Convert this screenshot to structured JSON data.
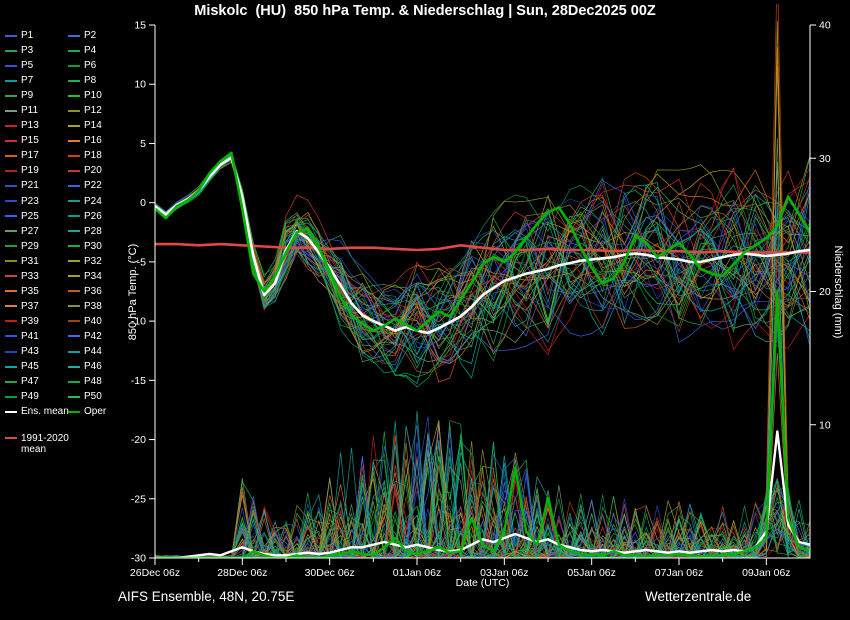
{
  "header": {
    "title": "Miskolc  (HU)  850 hPa Temp. & Niederschlag | Sun, 28Dec2025 00Z"
  },
  "footer": {
    "left": "AIFS Ensemble, 48N, 20.75E",
    "right": "Wetterzentrale.de"
  },
  "legend": {
    "members": [
      {
        "label": "P1",
        "color": "#3a5fd0"
      },
      {
        "label": "P2",
        "color": "#4169e1"
      },
      {
        "label": "P3",
        "color": "#2aa05a"
      },
      {
        "label": "P4",
        "color": "#22aa44"
      },
      {
        "label": "P5",
        "color": "#3355dd"
      },
      {
        "label": "P6",
        "color": "#119944"
      },
      {
        "label": "P7",
        "color": "#00a0a0"
      },
      {
        "label": "P8",
        "color": "#20b050"
      },
      {
        "label": "P9",
        "color": "#30a060"
      },
      {
        "label": "P10",
        "color": "#00cc33"
      },
      {
        "label": "P11",
        "color": "#7a9a7a"
      },
      {
        "label": "P12",
        "color": "#909020"
      },
      {
        "label": "P13",
        "color": "#cc2222"
      },
      {
        "label": "P14",
        "color": "#b0a020"
      },
      {
        "label": "P15",
        "color": "#d03030"
      },
      {
        "label": "P16",
        "color": "#e08020"
      },
      {
        "label": "P17",
        "color": "#e06010"
      },
      {
        "label": "P18",
        "color": "#d04010"
      },
      {
        "label": "P19",
        "color": "#b02020"
      },
      {
        "label": "P20",
        "color": "#cc3333"
      },
      {
        "label": "P21",
        "color": "#3050c0"
      },
      {
        "label": "P22",
        "color": "#4060e0"
      },
      {
        "label": "P23",
        "color": "#2a4ad0"
      },
      {
        "label": "P24",
        "color": "#10a090"
      },
      {
        "label": "P25",
        "color": "#3060ff"
      },
      {
        "label": "P26",
        "color": "#00a080"
      },
      {
        "label": "P27",
        "color": "#6a9a6a"
      },
      {
        "label": "P28",
        "color": "#20a0a0"
      },
      {
        "label": "P29",
        "color": "#20a040"
      },
      {
        "label": "P30",
        "color": "#10b050"
      },
      {
        "label": "P31",
        "color": "#8a8a20"
      },
      {
        "label": "P32",
        "color": "#a0a030"
      },
      {
        "label": "P33",
        "color": "#d04040"
      },
      {
        "label": "P34",
        "color": "#a8a020"
      },
      {
        "label": "P35",
        "color": "#e07020"
      },
      {
        "label": "P36",
        "color": "#c06020"
      },
      {
        "label": "P37",
        "color": "#e08030"
      },
      {
        "label": "P38",
        "color": "#909030"
      },
      {
        "label": "P39",
        "color": "#c02020"
      },
      {
        "label": "P40",
        "color": "#a04020"
      },
      {
        "label": "P41",
        "color": "#3355dd"
      },
      {
        "label": "P42",
        "color": "#4466ee"
      },
      {
        "label": "P43",
        "color": "#2244bb"
      },
      {
        "label": "P44",
        "color": "#10a0a0"
      },
      {
        "label": "P45",
        "color": "#00aaaa"
      },
      {
        "label": "P46",
        "color": "#20b0a0"
      },
      {
        "label": "P47",
        "color": "#20aa40"
      },
      {
        "label": "P48",
        "color": "#10b040"
      },
      {
        "label": "P49",
        "color": "#00aa30"
      },
      {
        "label": "P50",
        "color": "#20c050"
      }
    ],
    "ens_mean": {
      "label": "Ens. mean",
      "color": "#ffffff"
    },
    "oper": {
      "label": "Oper",
      "color": "#00b400"
    },
    "clim": {
      "label": "1991-2020 mean",
      "color": "#e04848"
    }
  },
  "chart_data": {
    "type": "line",
    "title": "Miskolc  (HU)  850 hPa Temp. & Niederschlag | Sun, 28Dec2025 00Z",
    "xlabel": "Date (UTC)",
    "ylabel_left": "850 hPa Temp. (°C)",
    "ylabel_right": "Niederschlag (mm)",
    "x_unit": "days since 26Dec 06z",
    "x_range": [
      0,
      15
    ],
    "y_left_range": [
      -30,
      15
    ],
    "y_right_range": [
      0,
      40
    ],
    "y_left_ticks": [
      15,
      10,
      5,
      0,
      -5,
      -10,
      -15,
      -20,
      -25,
      -30
    ],
    "y_right_ticks": [
      40,
      30,
      20,
      10
    ],
    "x_ticks": [
      {
        "t": 0,
        "label": "26Dec 06z"
      },
      {
        "t": 2,
        "label": "28Dec 06z"
      },
      {
        "t": 4,
        "label": "30Dec 06z"
      },
      {
        "t": 6,
        "label": "01Jan 06z"
      },
      {
        "t": 8,
        "label": "03Jan 06z"
      },
      {
        "t": 10,
        "label": "05Jan 06z"
      },
      {
        "t": 12,
        "label": "07Jan 06z"
      },
      {
        "t": 14,
        "label": "09Jan 06z"
      }
    ],
    "time_step_days": 0.25,
    "series": [
      {
        "id": "clim",
        "name": "1991-2020 mean temperature",
        "axis": "left",
        "color": "#e04848",
        "width": 2.6,
        "step": 0.5,
        "values": [
          -3.5,
          -3.5,
          -3.6,
          -3.5,
          -3.6,
          -3.7,
          -3.8,
          -3.8,
          -3.9,
          -3.8,
          -3.8,
          -3.9,
          -4.0,
          -3.9,
          -3.6,
          -3.8,
          -4.0,
          -4.0,
          -3.9,
          -4.0,
          -4.0,
          -4.1,
          -4.0,
          -4.1,
          -4.1,
          -4.2,
          -4.1,
          -4.2,
          -4.2,
          -4.2,
          -4.2
        ]
      },
      {
        "id": "ens_mean_t",
        "name": "Ensemble mean temperature",
        "axis": "left",
        "color": "#ffffff",
        "width": 2.6,
        "values": [
          -0.3,
          -1.0,
          -0.2,
          0.3,
          1.0,
          2.2,
          3.2,
          3.8,
          0.5,
          -4.5,
          -7.8,
          -6.8,
          -4.0,
          -2.4,
          -3.0,
          -4.2,
          -5.5,
          -7.0,
          -8.5,
          -9.5,
          -10.0,
          -10.4,
          -10.8,
          -10.5,
          -10.8,
          -11.0,
          -10.6,
          -10.1,
          -9.6,
          -8.8,
          -7.8,
          -7.2,
          -6.6,
          -6.3,
          -6.0,
          -5.8,
          -5.6,
          -5.3,
          -5.1,
          -4.9,
          -4.8,
          -4.7,
          -4.6,
          -4.4,
          -4.3,
          -4.4,
          -4.6,
          -4.7,
          -4.8,
          -5.0,
          -5.0,
          -4.8,
          -4.6,
          -4.4,
          -4.3,
          -4.4,
          -4.5,
          -4.4,
          -4.3,
          -4.1,
          -4.0
        ]
      },
      {
        "id": "oper_t",
        "name": "Operational temperature",
        "axis": "left",
        "color": "#00b400",
        "width": 2.6,
        "values": [
          -0.5,
          -1.3,
          -0.3,
          0.2,
          1.0,
          2.5,
          3.5,
          4.2,
          -0.5,
          -6.0,
          -7.5,
          -6.2,
          -4.2,
          -2.5,
          -2.2,
          -3.8,
          -5.8,
          -8.0,
          -9.5,
          -10.2,
          -10.8,
          -10.4,
          -9.8,
          -10.3,
          -10.8,
          -10.0,
          -9.2,
          -9.6,
          -8.2,
          -6.8,
          -5.2,
          -4.6,
          -5.0,
          -4.2,
          -3.0,
          -1.8,
          -0.8,
          -0.4,
          -1.8,
          -3.8,
          -5.5,
          -6.8,
          -6.4,
          -5.0,
          -2.8,
          -3.4,
          -4.6,
          -4.0,
          -3.4,
          -4.4,
          -5.6,
          -6.0,
          -6.2,
          -5.2,
          -4.2,
          -3.6,
          -3.0,
          -2.0,
          0.5,
          -1.0,
          -2.5
        ]
      },
      {
        "id": "ens_mean_p",
        "name": "Ensemble mean precipitation",
        "axis": "right",
        "color": "#ffffff",
        "width": 2.4,
        "values": [
          0,
          0,
          0,
          0.1,
          0.2,
          0.3,
          0.2,
          0.5,
          0.8,
          0.5,
          0.3,
          0.2,
          0.2,
          0.3,
          0.4,
          0.3,
          0.4,
          0.6,
          0.8,
          0.8,
          1.0,
          1.2,
          1.0,
          0.8,
          1.0,
          0.8,
          0.6,
          0.5,
          0.6,
          1.0,
          1.4,
          1.2,
          1.5,
          1.8,
          1.5,
          1.2,
          1.4,
          1.0,
          0.8,
          0.6,
          0.5,
          0.6,
          0.5,
          0.4,
          0.5,
          0.6,
          0.5,
          0.4,
          0.5,
          0.4,
          0.5,
          0.6,
          0.5,
          0.6,
          0.5,
          0.8,
          2.0,
          9.5,
          2.5,
          1.2,
          1.0
        ]
      },
      {
        "id": "oper_p",
        "name": "Operational precipitation",
        "axis": "right",
        "color": "#00b400",
        "width": 2.4,
        "values": [
          0,
          0,
          0,
          0,
          0,
          0,
          0,
          0,
          0,
          0.5,
          0.2,
          0,
          0,
          0.2,
          0,
          0,
          0.2,
          0.3,
          0.5,
          0.3,
          0.2,
          0.8,
          1.5,
          0.5,
          0.3,
          0.5,
          0.8,
          0.4,
          0.5,
          3.0,
          1.0,
          0.5,
          2.0,
          6.8,
          2.0,
          1.0,
          4.5,
          1.0,
          0.5,
          0.3,
          0.2,
          0.2,
          0.5,
          0.2,
          0.2,
          0.1,
          0.2,
          0.2,
          0.3,
          0.2,
          0.1,
          0.2,
          0.2,
          0.3,
          0.5,
          0.8,
          1.5,
          20,
          3,
          0.8,
          0.5
        ]
      }
    ],
    "ensemble": {
      "count": 50,
      "spread_profile": [
        [
          0,
          0.3
        ],
        [
          1.75,
          0.45
        ],
        [
          2.2,
          1.3
        ],
        [
          3,
          2.8
        ],
        [
          4.5,
          4.2
        ],
        [
          6,
          5.5
        ],
        [
          8,
          6.6
        ],
        [
          10,
          7.2
        ],
        [
          15,
          7.8
        ]
      ],
      "precip_envelope": [
        [
          0,
          0.2
        ],
        [
          1.9,
          0.2
        ],
        [
          2,
          6
        ],
        [
          3,
          3
        ],
        [
          4.5,
          9
        ],
        [
          6.5,
          12
        ],
        [
          9.5,
          5
        ],
        [
          13.5,
          4
        ],
        [
          14.6,
          6
        ],
        [
          15,
          3
        ]
      ]
    }
  }
}
